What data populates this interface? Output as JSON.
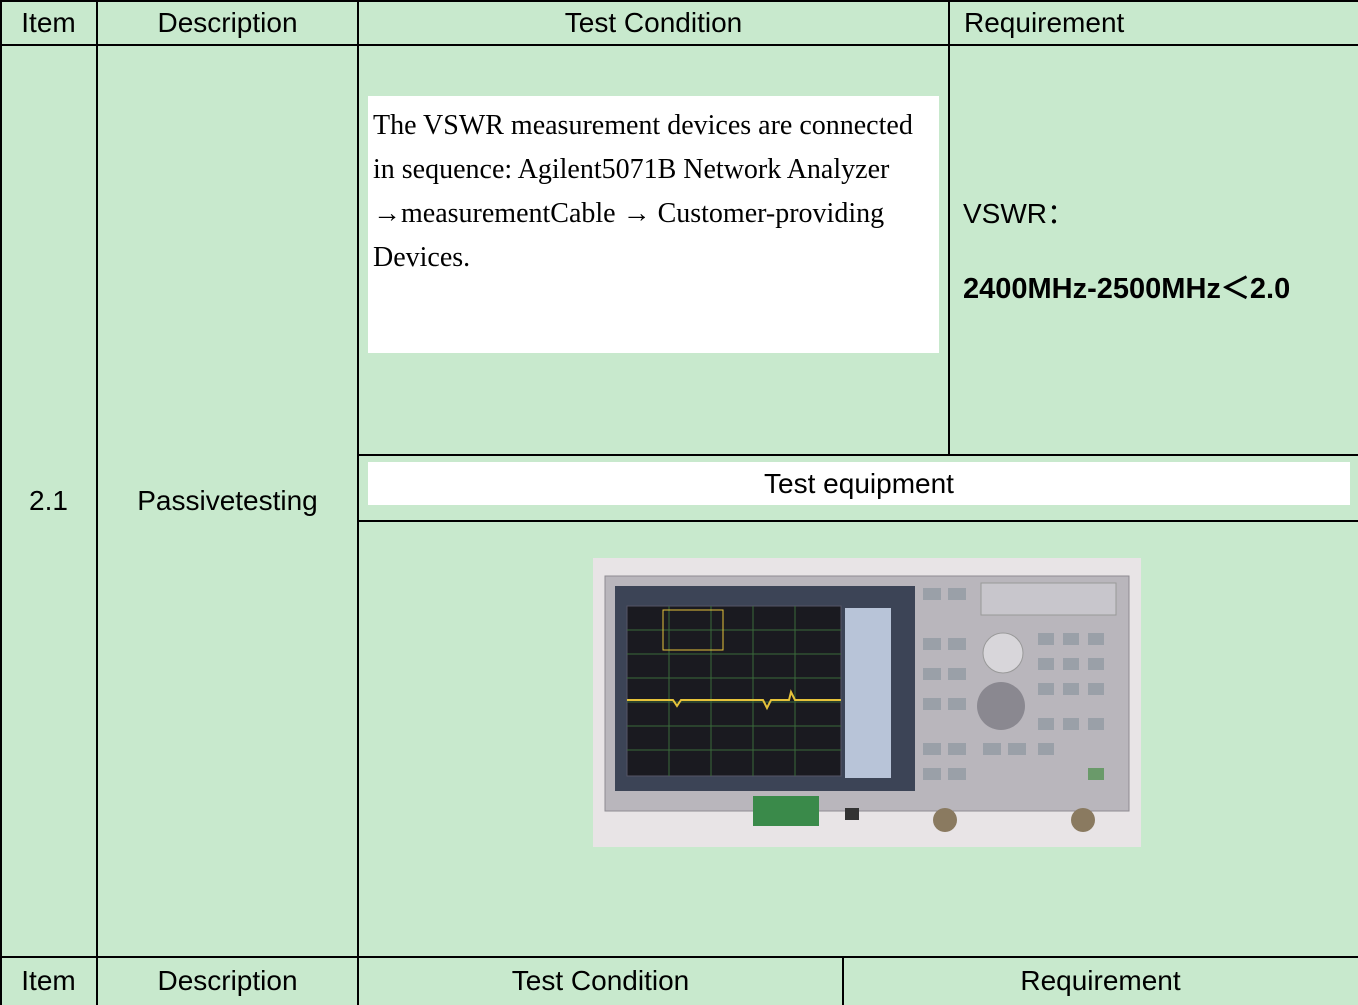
{
  "header": {
    "cells": [
      "Item",
      "Description",
      "Test Condition",
      "Requirement"
    ]
  },
  "row": {
    "item": "2.1",
    "description": "Passivetesting",
    "test_condition": "The VSWR measurement devices are connected in sequence: Agilent5071B Network Analyzer →measurementCable → Customer-providing Devices.",
    "requirement_label": "VSWR：",
    "requirement_value": "2400MHz-2500MHz＜2.0",
    "equipment_heading": "Test equipment"
  },
  "footer": {
    "cells": [
      "Item",
      "Description",
      "Test Condition",
      "Requirement"
    ]
  }
}
